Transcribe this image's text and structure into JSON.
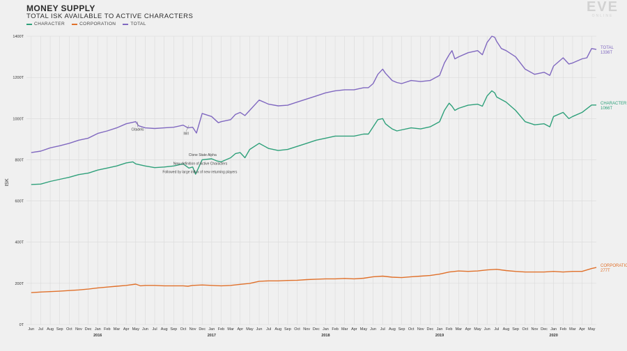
{
  "header": {
    "title": "MONEY SUPPLY",
    "subtitle": "TOTAL ISK AVAILABLE TO ACTIVE CHARACTERS",
    "legend": [
      {
        "label": "CHARACTER",
        "color": "#2ea07a"
      },
      {
        "label": "CORPORATION",
        "color": "#e0702a"
      },
      {
        "label": "TOTAL",
        "color": "#8068c0"
      }
    ],
    "logo": "EVE",
    "logo_sub": "ONLINE"
  },
  "chart_data": {
    "type": "line",
    "ylabel": "ISK",
    "ylim": [
      0,
      1400
    ],
    "yticks": [
      "0T",
      "200T",
      "400T",
      "600T",
      "800T",
      "1000T",
      "1200T",
      "1400T"
    ],
    "x_months": [
      "Jun",
      "Jul",
      "Aug",
      "Sep",
      "Oct",
      "Nov",
      "Dec",
      "Jan",
      "Feb",
      "Mar",
      "Apr",
      "May",
      "Jun",
      "Jul",
      "Aug",
      "Sep",
      "Oct",
      "Nov",
      "Dec",
      "Jan",
      "Feb",
      "Mar",
      "Apr",
      "May",
      "Jun",
      "Jul",
      "Aug",
      "Sep",
      "Oct",
      "Nov",
      "Dec",
      "Jan",
      "Feb",
      "Mar",
      "Apr",
      "May",
      "Jun",
      "Jul",
      "Aug",
      "Sep",
      "Oct",
      "Nov",
      "Dec",
      "Jan",
      "Feb",
      "Mar",
      "Apr",
      "May",
      "Jun",
      "Jul",
      "Aug",
      "Sep",
      "Oct",
      "Nov",
      "Dec",
      "Jan",
      "Feb",
      "Mar",
      "Apr",
      "May"
    ],
    "years": [
      {
        "label": "2016",
        "month_index": 7
      },
      {
        "label": "2017",
        "month_index": 19
      },
      {
        "label": "2018",
        "month_index": 31
      },
      {
        "label": "2019",
        "month_index": 43
      },
      {
        "label": "2020",
        "month_index": 55
      }
    ],
    "series": [
      {
        "name": "TOTAL",
        "color": "#8068c0",
        "end_label": "TOTAL",
        "end_value": "1336T",
        "points": [
          [
            0,
            835
          ],
          [
            1,
            842
          ],
          [
            2,
            858
          ],
          [
            3,
            868
          ],
          [
            4,
            880
          ],
          [
            5,
            895
          ],
          [
            6,
            905
          ],
          [
            7,
            928
          ],
          [
            8,
            940
          ],
          [
            9,
            955
          ],
          [
            10,
            975
          ],
          [
            11,
            985
          ],
          [
            11.3,
            965
          ],
          [
            12,
            955
          ],
          [
            13,
            952
          ],
          [
            14,
            955
          ],
          [
            15,
            958
          ],
          [
            16,
            968
          ],
          [
            16.5,
            955
          ],
          [
            17,
            958
          ],
          [
            17.4,
            930
          ],
          [
            18,
            1025
          ],
          [
            19,
            1010
          ],
          [
            19.7,
            980
          ],
          [
            20,
            985
          ],
          [
            21,
            995
          ],
          [
            21.5,
            1020
          ],
          [
            22,
            1030
          ],
          [
            22.5,
            1015
          ],
          [
            23,
            1040
          ],
          [
            24,
            1090
          ],
          [
            25,
            1070
          ],
          [
            26,
            1062
          ],
          [
            27,
            1065
          ],
          [
            28,
            1080
          ],
          [
            29,
            1095
          ],
          [
            30,
            1110
          ],
          [
            31,
            1125
          ],
          [
            32,
            1135
          ],
          [
            33,
            1140
          ],
          [
            34,
            1140
          ],
          [
            35,
            1150
          ],
          [
            35.5,
            1150
          ],
          [
            36,
            1170
          ],
          [
            36.5,
            1215
          ],
          [
            37,
            1240
          ],
          [
            37.3,
            1220
          ],
          [
            37.7,
            1200
          ],
          [
            38,
            1185
          ],
          [
            38.5,
            1175
          ],
          [
            39,
            1170
          ],
          [
            40,
            1185
          ],
          [
            41,
            1180
          ],
          [
            42,
            1185
          ],
          [
            43,
            1210
          ],
          [
            43.5,
            1270
          ],
          [
            44,
            1310
          ],
          [
            44.3,
            1330
          ],
          [
            44.6,
            1290
          ],
          [
            45,
            1300
          ],
          [
            46,
            1320
          ],
          [
            47,
            1330
          ],
          [
            47.5,
            1310
          ],
          [
            48,
            1370
          ],
          [
            48.5,
            1400
          ],
          [
            48.8,
            1395
          ],
          [
            49,
            1375
          ],
          [
            49.5,
            1340
          ],
          [
            50,
            1330
          ],
          [
            51,
            1300
          ],
          [
            52,
            1240
          ],
          [
            53,
            1215
          ],
          [
            54,
            1225
          ],
          [
            54.6,
            1210
          ],
          [
            55,
            1255
          ],
          [
            56,
            1295
          ],
          [
            56.6,
            1265
          ],
          [
            57,
            1270
          ],
          [
            58,
            1290
          ],
          [
            58.5,
            1295
          ],
          [
            59,
            1340
          ],
          [
            59.5,
            1336
          ]
        ]
      },
      {
        "name": "CHARACTER",
        "color": "#2ea07a",
        "end_label": "CHARACTER",
        "end_value": "1066T",
        "points": [
          [
            0,
            680
          ],
          [
            1,
            682
          ],
          [
            2,
            695
          ],
          [
            3,
            705
          ],
          [
            4,
            715
          ],
          [
            5,
            728
          ],
          [
            6,
            735
          ],
          [
            7,
            750
          ],
          [
            8,
            760
          ],
          [
            9,
            770
          ],
          [
            10,
            785
          ],
          [
            10.7,
            790
          ],
          [
            11,
            780
          ],
          [
            12,
            770
          ],
          [
            13,
            762
          ],
          [
            14,
            765
          ],
          [
            15,
            770
          ],
          [
            16,
            780
          ],
          [
            16.6,
            760
          ],
          [
            17,
            765
          ],
          [
            17.3,
            730
          ],
          [
            17.6,
            760
          ],
          [
            18,
            800
          ],
          [
            19,
            805
          ],
          [
            19.5,
            795
          ],
          [
            20,
            790
          ],
          [
            21,
            810
          ],
          [
            21.5,
            830
          ],
          [
            22,
            835
          ],
          [
            22.5,
            810
          ],
          [
            23,
            850
          ],
          [
            24,
            880
          ],
          [
            25,
            855
          ],
          [
            26,
            845
          ],
          [
            27,
            850
          ],
          [
            28,
            865
          ],
          [
            29,
            880
          ],
          [
            30,
            895
          ],
          [
            31,
            905
          ],
          [
            32,
            915
          ],
          [
            33,
            915
          ],
          [
            34,
            915
          ],
          [
            35,
            925
          ],
          [
            35.5,
            925
          ],
          [
            36,
            960
          ],
          [
            36.5,
            995
          ],
          [
            37,
            1000
          ],
          [
            37.3,
            975
          ],
          [
            37.7,
            960
          ],
          [
            38,
            950
          ],
          [
            38.5,
            940
          ],
          [
            39,
            945
          ],
          [
            40,
            955
          ],
          [
            41,
            950
          ],
          [
            42,
            960
          ],
          [
            43,
            985
          ],
          [
            43.5,
            1040
          ],
          [
            44,
            1075
          ],
          [
            44.3,
            1060
          ],
          [
            44.6,
            1040
          ],
          [
            45,
            1050
          ],
          [
            46,
            1065
          ],
          [
            47,
            1070
          ],
          [
            47.5,
            1060
          ],
          [
            48,
            1110
          ],
          [
            48.5,
            1135
          ],
          [
            48.8,
            1125
          ],
          [
            49,
            1105
          ],
          [
            50,
            1080
          ],
          [
            51,
            1040
          ],
          [
            52,
            985
          ],
          [
            53,
            970
          ],
          [
            54,
            975
          ],
          [
            54.6,
            960
          ],
          [
            55,
            1010
          ],
          [
            56,
            1030
          ],
          [
            56.6,
            1000
          ],
          [
            57,
            1010
          ],
          [
            58,
            1030
          ],
          [
            59,
            1066
          ],
          [
            59.5,
            1066
          ]
        ]
      },
      {
        "name": "CORPORATION",
        "color": "#e0702a",
        "end_label": "CORPORATION",
        "end_value": "277T",
        "points": [
          [
            0,
            155
          ],
          [
            1,
            158
          ],
          [
            2,
            160
          ],
          [
            3,
            162
          ],
          [
            4,
            165
          ],
          [
            5,
            168
          ],
          [
            6,
            172
          ],
          [
            7,
            178
          ],
          [
            8,
            182
          ],
          [
            9,
            186
          ],
          [
            10,
            190
          ],
          [
            11,
            196
          ],
          [
            11.5,
            188
          ],
          [
            12,
            190
          ],
          [
            13,
            190
          ],
          [
            14,
            188
          ],
          [
            15,
            188
          ],
          [
            16,
            188
          ],
          [
            16.5,
            186
          ],
          [
            17,
            190
          ],
          [
            18,
            192
          ],
          [
            19,
            190
          ],
          [
            20,
            188
          ],
          [
            21,
            190
          ],
          [
            22,
            195
          ],
          [
            23,
            200
          ],
          [
            24,
            210
          ],
          [
            25,
            212
          ],
          [
            26,
            212
          ],
          [
            27,
            214
          ],
          [
            28,
            215
          ],
          [
            29,
            218
          ],
          [
            30,
            220
          ],
          [
            31,
            222
          ],
          [
            32,
            222
          ],
          [
            33,
            224
          ],
          [
            34,
            222
          ],
          [
            35,
            225
          ],
          [
            36,
            232
          ],
          [
            37,
            235
          ],
          [
            38,
            230
          ],
          [
            39,
            228
          ],
          [
            40,
            232
          ],
          [
            41,
            235
          ],
          [
            42,
            238
          ],
          [
            43,
            245
          ],
          [
            44,
            255
          ],
          [
            45,
            260
          ],
          [
            46,
            258
          ],
          [
            47,
            260
          ],
          [
            48,
            265
          ],
          [
            49,
            268
          ],
          [
            50,
            262
          ],
          [
            51,
            258
          ],
          [
            52,
            255
          ],
          [
            53,
            255
          ],
          [
            54,
            255
          ],
          [
            55,
            258
          ],
          [
            56,
            255
          ],
          [
            57,
            258
          ],
          [
            58,
            258
          ],
          [
            59,
            272
          ],
          [
            59.5,
            277
          ]
        ]
      }
    ],
    "annotations": [
      {
        "text": "Citadels",
        "month": 11.2,
        "value": 985
      },
      {
        "text": "IWI",
        "month": 16.6,
        "value": 968
      },
      {
        "text": "Clone State Alpha",
        "month": 17.6,
        "value": 930
      },
      {
        "text": "New definition of Active Characters",
        "month": 17.8,
        "value": 912
      },
      {
        "text": "Followed by large influx of new returning players",
        "month": 17.9,
        "value": 895
      }
    ]
  }
}
